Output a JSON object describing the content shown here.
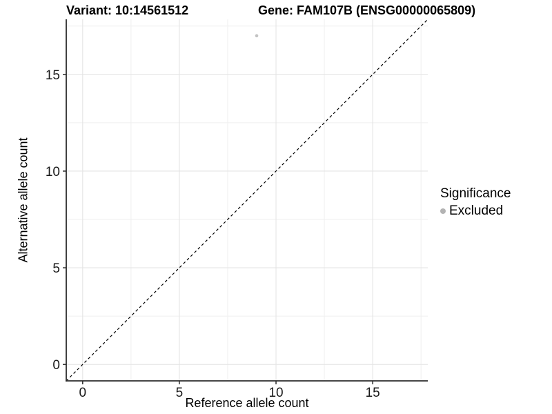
{
  "titles": {
    "variant": "Variant: 10:14561512",
    "gene": "Gene: FAM107B (ENSG00000065809)"
  },
  "chart_data": {
    "type": "scatter",
    "xlabel": "Reference allele count",
    "ylabel": "Alternative allele count",
    "xlim": [
      -0.85,
      17.85
    ],
    "ylim": [
      -0.85,
      17.85
    ],
    "x_ticks": [
      0,
      5,
      10,
      15
    ],
    "y_ticks": [
      0,
      5,
      10,
      15
    ],
    "x_minor_ticks": [
      2.5,
      7.5,
      12.5,
      17.5
    ],
    "y_minor_ticks": [
      2.5,
      7.5,
      12.5,
      17.5
    ],
    "grid": true,
    "points": [
      {
        "x": 9,
        "y": 17,
        "series": "Excluded"
      }
    ],
    "reference_line": {
      "slope": 1,
      "intercept": 0,
      "style": "dashed"
    },
    "legend": {
      "title": "Significance",
      "position": "right",
      "entries": [
        {
          "label": "Excluded",
          "color": "#b3b3b3"
        }
      ]
    },
    "colors": {
      "point": "#c3c3c3",
      "grid_major": "#e4e4e4",
      "grid_minor": "#efefef",
      "axis_line": "#2b2b2b",
      "tick_label": "#1a1a1a",
      "reference_line": "#000000",
      "background": "#ffffff"
    }
  }
}
